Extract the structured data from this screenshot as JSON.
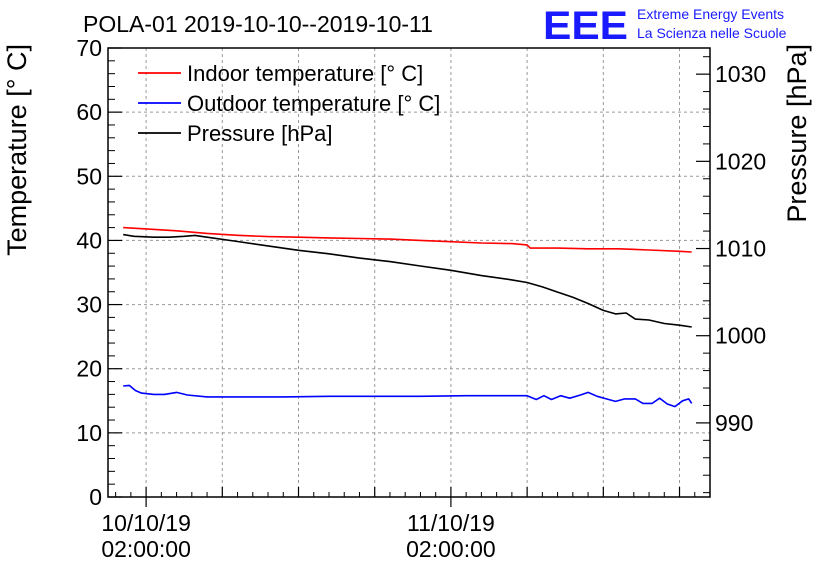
{
  "chart_data": {
    "type": "line",
    "title": "POLA-01 2019-10-10--2019-10-11",
    "logo": {
      "mark": "EEE",
      "line1": "Extreme Energy Events",
      "line2": "La Scienza nelle Scuole",
      "color": "#1a1aff"
    },
    "ylabel_left": "Temperature [° C]",
    "ylabel_right": "Pressure [hPa]",
    "ylim_left": [
      0,
      70
    ],
    "ylim_right": [
      981.5,
      1033
    ],
    "xlim_hours": [
      -2.5,
      37.0
    ],
    "yticks_left": [
      0,
      10,
      20,
      30,
      40,
      50,
      60,
      70
    ],
    "yticks_right": [
      990,
      1000,
      1010,
      1020,
      1030
    ],
    "xticks": [
      {
        "hour": 0,
        "line1": "10/10/19",
        "line2": "02:00:00"
      },
      {
        "hour": 20,
        "line1": "11/10/19",
        "line2": "02:00:00"
      }
    ],
    "grid": true,
    "legend_position": "top-left",
    "series": [
      {
        "name": "Indoor temperature [° C]",
        "axis": "left",
        "color": "#ff0000",
        "points": [
          [
            -1.5,
            42.0
          ],
          [
            0,
            41.8
          ],
          [
            2,
            41.5
          ],
          [
            4,
            41.1
          ],
          [
            6,
            40.8
          ],
          [
            8,
            40.6
          ],
          [
            10,
            40.5
          ],
          [
            12,
            40.4
          ],
          [
            14,
            40.3
          ],
          [
            16,
            40.2
          ],
          [
            18,
            40.0
          ],
          [
            20,
            39.8
          ],
          [
            22,
            39.6
          ],
          [
            24,
            39.5
          ],
          [
            25,
            39.3
          ],
          [
            25.2,
            38.8
          ],
          [
            27,
            38.8
          ],
          [
            29,
            38.7
          ],
          [
            31,
            38.7
          ],
          [
            33,
            38.5
          ],
          [
            35,
            38.3
          ],
          [
            35.8,
            38.2
          ]
        ]
      },
      {
        "name": "Outdoor temperature [° C]",
        "axis": "left",
        "color": "#0000ff",
        "points": [
          [
            -1.5,
            17.3
          ],
          [
            -1.1,
            17.4
          ],
          [
            -0.7,
            16.6
          ],
          [
            -0.3,
            16.2
          ],
          [
            0.5,
            16.0
          ],
          [
            1.2,
            16.0
          ],
          [
            2,
            16.3
          ],
          [
            2.7,
            15.9
          ],
          [
            4,
            15.6
          ],
          [
            6,
            15.6
          ],
          [
            9,
            15.6
          ],
          [
            12,
            15.7
          ],
          [
            15,
            15.7
          ],
          [
            18,
            15.7
          ],
          [
            21,
            15.8
          ],
          [
            24,
            15.8
          ],
          [
            25,
            15.8
          ],
          [
            25.6,
            15.2
          ],
          [
            26.1,
            15.8
          ],
          [
            26.6,
            15.2
          ],
          [
            27.2,
            15.8
          ],
          [
            27.8,
            15.4
          ],
          [
            28.5,
            15.9
          ],
          [
            29,
            16.3
          ],
          [
            29.6,
            15.7
          ],
          [
            30.2,
            15.3
          ],
          [
            30.8,
            14.9
          ],
          [
            31.4,
            15.3
          ],
          [
            32.1,
            15.3
          ],
          [
            32.6,
            14.6
          ],
          [
            33.2,
            14.6
          ],
          [
            33.7,
            15.4
          ],
          [
            34.2,
            14.5
          ],
          [
            34.7,
            14.1
          ],
          [
            35.2,
            15.0
          ],
          [
            35.6,
            15.3
          ],
          [
            35.8,
            14.6
          ]
        ]
      },
      {
        "name": "Pressure [hPa]",
        "axis": "right",
        "color": "#000000",
        "points": [
          [
            -1.5,
            1011.6
          ],
          [
            -0.8,
            1011.4
          ],
          [
            0.5,
            1011.3
          ],
          [
            1.5,
            1011.3
          ],
          [
            2.5,
            1011.4
          ],
          [
            3.2,
            1011.5
          ],
          [
            4,
            1011.3
          ],
          [
            6,
            1010.8
          ],
          [
            8,
            1010.3
          ],
          [
            10,
            1009.8
          ],
          [
            12,
            1009.4
          ],
          [
            14,
            1008.9
          ],
          [
            16,
            1008.5
          ],
          [
            18,
            1008.0
          ],
          [
            20,
            1007.5
          ],
          [
            22,
            1006.9
          ],
          [
            24,
            1006.4
          ],
          [
            25,
            1006.1
          ],
          [
            26,
            1005.6
          ],
          [
            27,
            1005.0
          ],
          [
            28,
            1004.4
          ],
          [
            29,
            1003.7
          ],
          [
            30,
            1002.9
          ],
          [
            30.8,
            1002.5
          ],
          [
            31.5,
            1002.6
          ],
          [
            32.1,
            1001.9
          ],
          [
            33,
            1001.8
          ],
          [
            34,
            1001.4
          ],
          [
            35,
            1001.2
          ],
          [
            35.8,
            1001.0
          ]
        ]
      }
    ]
  }
}
